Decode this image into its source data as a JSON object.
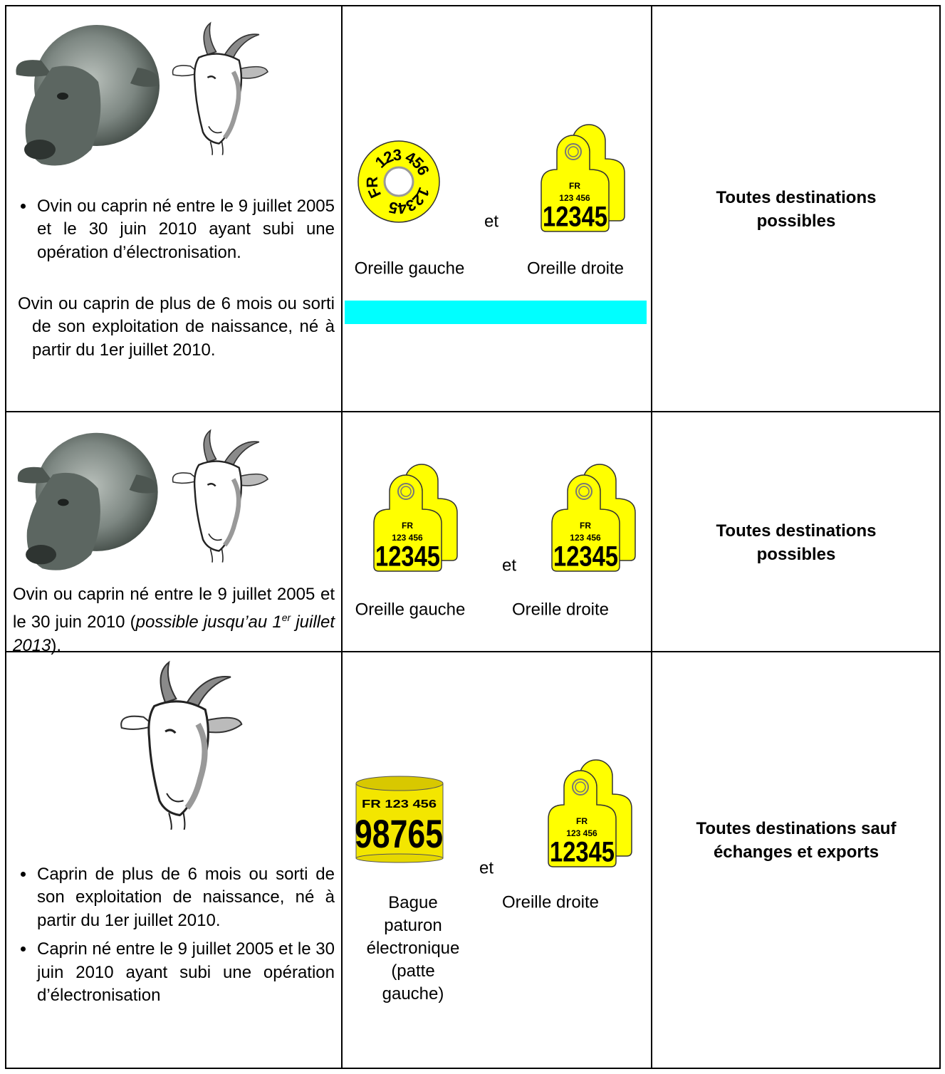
{
  "rows": [
    {
      "description": [
        "Ovin ou caprin né entre le 9 juillet 2005 et le 30 juin 2010 ayant subi une opération d’électronisation.",
        "Ovin ou caprin de plus de 6 mois ou sorti de son exploitation de naissance, né à partir du 1er juillet 2010."
      ],
      "tags": {
        "left": {
          "country": "FR",
          "code": "123 456",
          "number": "12345"
        },
        "right": {
          "country": "FR",
          "code": "123 456",
          "number": "12345"
        }
      },
      "connector": "et",
      "labels": [
        "Oreille gauche",
        "Oreille droite"
      ],
      "destination": "Toutes destinations possibles"
    },
    {
      "description": [
        "Ovin ou caprin né entre le 9 juillet 2005 et le 30 juin 2010 (",
        "possible jusqu’au 1",
        "er",
        " juillet 2013",
        ")."
      ],
      "tags": {
        "left": {
          "country": "FR",
          "code": "123 456",
          "number": "12345"
        },
        "right": {
          "country": "FR",
          "code": "123 456",
          "number": "12345"
        }
      },
      "connector": "et",
      "labels": [
        "Oreille gauche",
        "Oreille droite"
      ],
      "destination": "Toutes destinations possibles"
    },
    {
      "description": [
        "Caprin de plus de 6 mois ou sorti de son exploitation de naissance, né à partir du 1er juillet 2010.",
        "Caprin né entre le 9 juillet 2005 et le 30 juin 2010 ayant subi une opération d’électronisation"
      ],
      "tags": {
        "left": {
          "code": "FR 123 456",
          "number": "98765"
        },
        "right": {
          "country": "FR",
          "code": "123 456",
          "number": "12345"
        }
      },
      "connector": "et",
      "labels": [
        "Bague paturon électronique (patte gauche)",
        "Oreille droite"
      ],
      "destination": "Toutes destinations sauf échanges et exports"
    }
  ]
}
